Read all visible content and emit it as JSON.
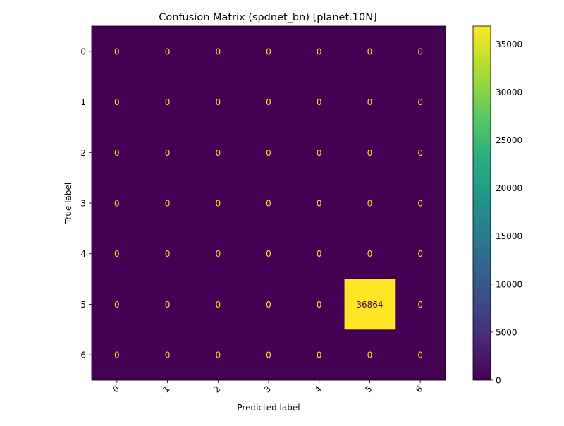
{
  "chart_data": {
    "type": "heatmap",
    "title": "Confusion Matrix (spdnet_bn) [planet.10N]",
    "xlabel": "Predicted label",
    "ylabel": "True label",
    "x_categories": [
      "0",
      "1",
      "2",
      "3",
      "4",
      "5",
      "6"
    ],
    "y_categories": [
      "0",
      "1",
      "2",
      "3",
      "4",
      "5",
      "6"
    ],
    "values": [
      [
        0,
        0,
        0,
        0,
        0,
        0,
        0
      ],
      [
        0,
        0,
        0,
        0,
        0,
        0,
        0
      ],
      [
        0,
        0,
        0,
        0,
        0,
        0,
        0
      ],
      [
        0,
        0,
        0,
        0,
        0,
        0,
        0
      ],
      [
        0,
        0,
        0,
        0,
        0,
        0,
        0
      ],
      [
        0,
        0,
        0,
        0,
        0,
        36864,
        0
      ],
      [
        0,
        0,
        0,
        0,
        0,
        0,
        0
      ]
    ],
    "colorbar": {
      "range": [
        0,
        36864
      ],
      "ticks": [
        0,
        5000,
        10000,
        15000,
        20000,
        25000,
        30000,
        35000
      ],
      "colormap": "viridis"
    },
    "x_tick_rotation": "45°",
    "grid": false,
    "colors": {
      "low": "#440154",
      "high": "#fde725",
      "text_on_low": "#fde725",
      "text_on_high": "#440154"
    }
  }
}
